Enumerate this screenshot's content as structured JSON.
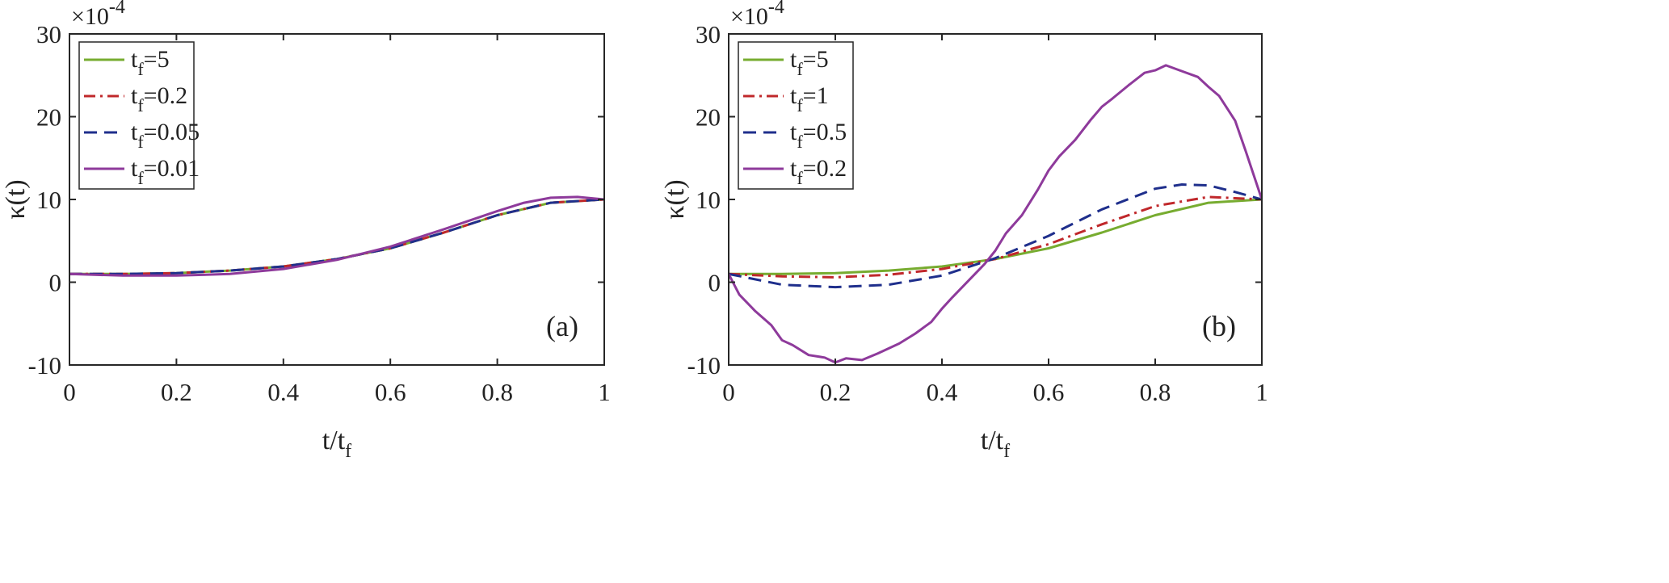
{
  "chart_data": [
    {
      "type": "line",
      "panel_label": "(a)",
      "xlabel": "t/t",
      "xlabel_sub": "f",
      "ylabel": "κ(t)",
      "y_multiplier_base": "×10",
      "y_multiplier_exp": "-4",
      "xlim": [
        0,
        1
      ],
      "ylim": [
        -10,
        30
      ],
      "xticks": [
        "0",
        "0.2",
        "0.4",
        "0.6",
        "0.8",
        "1"
      ],
      "yticks": [
        "-10",
        "0",
        "10",
        "20",
        "30"
      ],
      "grid": false,
      "legend_position": "top-left",
      "series": [
        {
          "name": "t",
          "name_sub": "f",
          "name_suffix": "=5",
          "color": "#77ac30",
          "dash": "solid",
          "x": [
            0,
            0.1,
            0.2,
            0.3,
            0.4,
            0.5,
            0.6,
            0.7,
            0.8,
            0.9,
            1.0
          ],
          "y": [
            1.0,
            1.0,
            1.1,
            1.4,
            1.9,
            2.8,
            4.1,
            6.0,
            8.1,
            9.6,
            10.0
          ]
        },
        {
          "name": "t",
          "name_sub": "f",
          "name_suffix": "=0.2",
          "color": "#c0282b",
          "dash": "dashdot",
          "x": [
            0,
            0.1,
            0.2,
            0.3,
            0.4,
            0.5,
            0.6,
            0.7,
            0.8,
            0.9,
            1.0
          ],
          "y": [
            1.0,
            1.0,
            1.1,
            1.4,
            1.9,
            2.8,
            4.1,
            6.0,
            8.1,
            9.6,
            10.0
          ]
        },
        {
          "name": "t",
          "name_sub": "f",
          "name_suffix": "=0.05",
          "color": "#1f2f8c",
          "dash": "dashed",
          "x": [
            0,
            0.1,
            0.2,
            0.3,
            0.4,
            0.5,
            0.6,
            0.7,
            0.8,
            0.9,
            1.0
          ],
          "y": [
            1.0,
            1.0,
            1.1,
            1.4,
            1.9,
            2.8,
            4.1,
            6.0,
            8.1,
            9.6,
            10.0
          ]
        },
        {
          "name": "t",
          "name_sub": "f",
          "name_suffix": "=0.01",
          "color": "#8e3a9b",
          "dash": "solid",
          "x": [
            0,
            0.1,
            0.2,
            0.3,
            0.4,
            0.5,
            0.6,
            0.7,
            0.8,
            0.85,
            0.9,
            0.95,
            1.0
          ],
          "y": [
            1.0,
            0.8,
            0.8,
            1.0,
            1.6,
            2.7,
            4.3,
            6.4,
            8.6,
            9.6,
            10.2,
            10.3,
            10.0
          ]
        }
      ]
    },
    {
      "type": "line",
      "panel_label": "(b)",
      "xlabel": "t/t",
      "xlabel_sub": "f",
      "ylabel": "κ(t)",
      "y_multiplier_base": "×10",
      "y_multiplier_exp": "-4",
      "xlim": [
        0,
        1
      ],
      "ylim": [
        -10,
        30
      ],
      "xticks": [
        "0",
        "0.2",
        "0.4",
        "0.6",
        "0.8",
        "1"
      ],
      "yticks": [
        "-10",
        "0",
        "10",
        "20",
        "30"
      ],
      "grid": false,
      "legend_position": "top-left",
      "series": [
        {
          "name": "t",
          "name_sub": "f",
          "name_suffix": "=5",
          "color": "#77ac30",
          "dash": "solid",
          "x": [
            0,
            0.1,
            0.2,
            0.3,
            0.4,
            0.5,
            0.6,
            0.7,
            0.8,
            0.9,
            1.0
          ],
          "y": [
            1.0,
            1.0,
            1.1,
            1.4,
            1.9,
            2.8,
            4.1,
            6.0,
            8.1,
            9.6,
            10.0
          ]
        },
        {
          "name": "t",
          "name_sub": "f",
          "name_suffix": "=1",
          "color": "#c0282b",
          "dash": "dashdot",
          "x": [
            0,
            0.1,
            0.2,
            0.3,
            0.4,
            0.5,
            0.6,
            0.7,
            0.8,
            0.9,
            1.0
          ],
          "y": [
            1.0,
            0.7,
            0.6,
            0.9,
            1.6,
            2.8,
            4.6,
            7.0,
            9.2,
            10.3,
            10.0
          ]
        },
        {
          "name": "t",
          "name_sub": "f",
          "name_suffix": "=0.5",
          "color": "#1f2f8c",
          "dash": "dashed",
          "x": [
            0,
            0.1,
            0.2,
            0.3,
            0.4,
            0.5,
            0.6,
            0.7,
            0.8,
            0.85,
            0.9,
            0.95,
            1.0
          ],
          "y": [
            1.0,
            -0.3,
            -0.6,
            -0.3,
            0.8,
            2.9,
            5.6,
            8.8,
            11.3,
            11.8,
            11.7,
            10.9,
            10.0
          ]
        },
        {
          "name": "t",
          "name_sub": "f",
          "name_suffix": "=0.2",
          "color": "#8e3a9b",
          "dash": "solid",
          "x": [
            0,
            0.02,
            0.05,
            0.08,
            0.1,
            0.12,
            0.15,
            0.18,
            0.2,
            0.22,
            0.25,
            0.28,
            0.3,
            0.32,
            0.35,
            0.38,
            0.4,
            0.42,
            0.45,
            0.48,
            0.5,
            0.52,
            0.55,
            0.58,
            0.6,
            0.62,
            0.65,
            0.68,
            0.7,
            0.72,
            0.75,
            0.78,
            0.8,
            0.82,
            0.85,
            0.88,
            0.9,
            0.92,
            0.95,
            0.97,
            1.0
          ],
          "y": [
            1.0,
            -1.5,
            -3.5,
            -5.2,
            -7.0,
            -7.6,
            -8.8,
            -9.1,
            -9.7,
            -9.2,
            -9.4,
            -8.6,
            -8.0,
            -7.4,
            -6.2,
            -4.8,
            -3.2,
            -1.8,
            0.2,
            2.2,
            3.8,
            5.9,
            8.1,
            11.2,
            13.5,
            15.2,
            17.2,
            19.7,
            21.2,
            22.2,
            23.8,
            25.3,
            25.6,
            26.2,
            25.5,
            24.8,
            23.6,
            22.5,
            19.5,
            15.8,
            10.0
          ]
        }
      ]
    }
  ]
}
